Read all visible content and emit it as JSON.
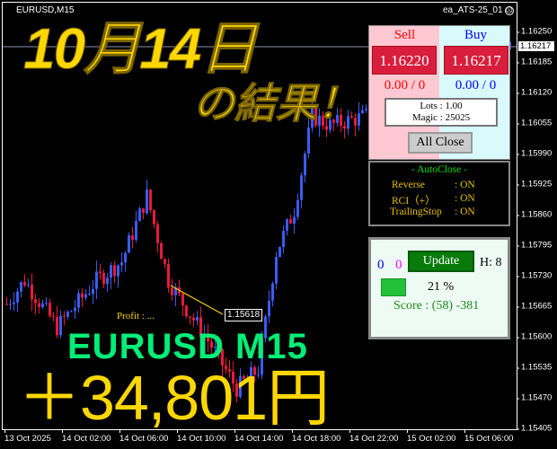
{
  "chart": {
    "symbol_label": "EURUSD,M15",
    "ea_name": "ea_ATS-25_01",
    "ea_status_icon": "frown-face-icon",
    "current_price": "1.16217",
    "price_axis": [
      "1.16250",
      "1.16185",
      "1.16120",
      "1.16055",
      "1.15990",
      "1.15925",
      "1.15860",
      "1.15795",
      "1.15730",
      "1.15665",
      "1.15600",
      "1.15535",
      "1.15470",
      "1.15405"
    ],
    "time_axis": [
      "13 Oct 2025",
      "14 Oct 02:00",
      "14 Oct 06:00",
      "14 Oct 10:00",
      "14 Oct 14:00",
      "14 Oct 18:00",
      "14 Oct 22:00",
      "15 Oct 02:00",
      "15 Oct 06:00"
    ],
    "price_path": [
      [
        0,
        1.1567
      ],
      [
        5,
        1.1572
      ],
      [
        14,
        1.1562
      ],
      [
        25,
        1.1572
      ],
      [
        32,
        1.1576
      ],
      [
        39,
        1.159
      ],
      [
        45,
        1.1572
      ],
      [
        50,
        1.1566
      ],
      [
        57,
        1.1558
      ],
      [
        64,
        1.1549
      ],
      [
        70,
        1.1553
      ],
      [
        75,
        1.1578
      ],
      [
        80,
        1.1587
      ],
      [
        85,
        1.1607
      ],
      [
        90,
        1.1605
      ],
      [
        100,
        1.1607
      ],
      [
        110,
        1.1603
      ],
      [
        125,
        1.1612
      ],
      [
        140,
        1.1621
      ]
    ],
    "order_price_label": "1.15618",
    "bull_color": "#3a5cf0",
    "bear_color": "#e8193c"
  },
  "overlay": {
    "title": "10月14日",
    "subtitle": "の結果！",
    "pair": "EURUSD M15",
    "profit": "＋34,801円",
    "profit_label": "Profit : ..."
  },
  "trade_panel": {
    "sell_label": "Sell",
    "buy_label": "Buy",
    "sell_price": "1.16220",
    "buy_price": "1.16217",
    "sell_positions": "0.00 / 0",
    "buy_positions": "0.00 / 0",
    "lots": "Lots   : 1.00",
    "magic": "Magic : 25025",
    "all_close": "All Close"
  },
  "autoclose": {
    "title": "- AutoClose -",
    "rows": [
      {
        "label": "Reverse",
        "value": ": ON"
      },
      {
        "label": "RCI（+）",
        "value": ": ON"
      },
      {
        "label": "TrailingStop",
        "value": ": ON"
      }
    ]
  },
  "status_panel": {
    "count_blue": "0",
    "count_magenta": "0",
    "update_label": "Update",
    "h_label": "H: 8",
    "percent": "21 %",
    "percent_value": 21,
    "score": "Score : (58) -381"
  }
}
